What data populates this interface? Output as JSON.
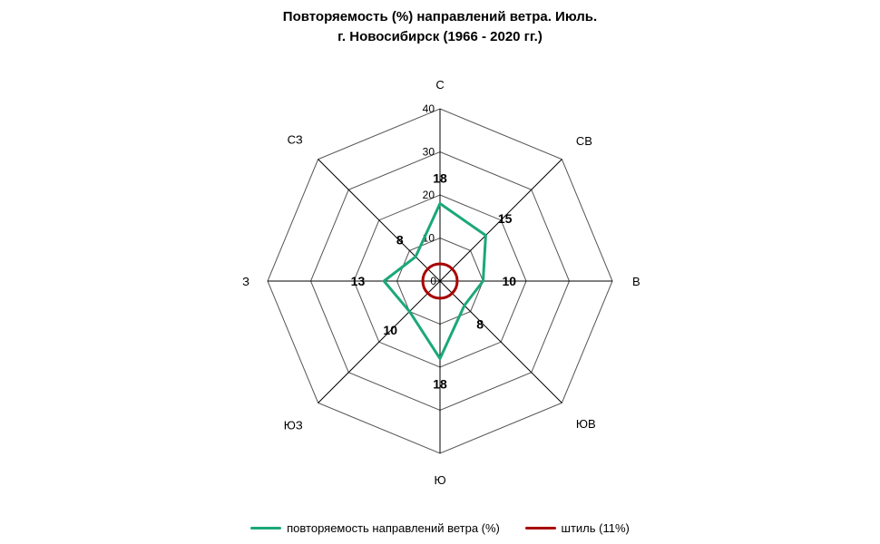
{
  "title_line1": "Повторяемость  (%) направлений ветра. Июль.",
  "title_line2": "г. Новосибирск (1966 - 2020 гг.)",
  "chart": {
    "type": "radar",
    "axes": [
      "С",
      "СВ",
      "В",
      "ЮВ",
      "Ю",
      "ЮЗ",
      "З",
      "СЗ"
    ],
    "max": 40,
    "rings": [
      10,
      20,
      30,
      40
    ],
    "ring_labels": [
      "10",
      "20",
      "30",
      "40"
    ],
    "center_label": "0",
    "series": {
      "wind": {
        "label": "повторяемость направлений ветра (%)",
        "color": "#1ba879",
        "line_width": 3,
        "values": [
          18,
          15,
          10,
          8,
          18,
          10,
          13,
          8
        ],
        "value_labels": [
          "18",
          "15",
          "10",
          "8",
          "18",
          "10",
          "13",
          "8"
        ]
      },
      "calm": {
        "label": "штиль (11%)",
        "color": "#aa0000",
        "line_width": 3,
        "radius": 4
      }
    },
    "axis_color": "#000000",
    "grid_color": "#555555",
    "background": "#ffffff",
    "label_fontsize": 13,
    "value_fontsize": 14,
    "tick_fontsize": 12
  }
}
